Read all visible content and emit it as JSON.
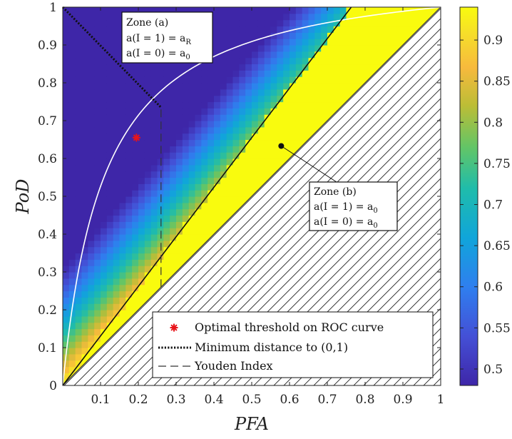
{
  "chart_data": {
    "type": "heatmap",
    "xlabel": "PFA",
    "ylabel": "PoD",
    "xlim": [
      0,
      1
    ],
    "ylim": [
      0,
      1
    ],
    "x_ticks": [
      "0.1",
      "0.2",
      "0.3",
      "0.4",
      "0.5",
      "0.6",
      "0.7",
      "0.8",
      "0.9",
      "1"
    ],
    "y_ticks": [
      "0",
      "0.1",
      "0.2",
      "0.3",
      "0.4",
      "0.5",
      "0.6",
      "0.7",
      "0.8",
      "0.9",
      "1"
    ],
    "colorbar": {
      "min": 0.48,
      "max": 0.94,
      "ticks": [
        "0.5",
        "0.55",
        "0.6",
        "0.65",
        "0.7",
        "0.75",
        "0.8",
        "0.85",
        "0.9"
      ],
      "colormap": "parula"
    },
    "roc_curve_k": 9,
    "zone_boundary": {
      "slope": 1.31,
      "intercept": 0
    },
    "optimal_point": {
      "x": 0.195,
      "y": 0.655
    },
    "min_distance_line": {
      "x": [
        0,
        0.26
      ],
      "y": [
        1,
        0.735
      ]
    },
    "youden_line": {
      "x": [
        0.26,
        0.26
      ],
      "y": [
        0.26,
        0.735
      ]
    },
    "zone_b_marker": {
      "x": 0.578,
      "y": 0.633
    },
    "annotations": {
      "zone_a": [
        "Zone (a)",
        "a(I = 1) = a",
        "R",
        "a(I = 0) = a",
        "0"
      ],
      "zone_b": [
        "Zone (b)",
        "a(I = 1) = a",
        "0",
        "a(I = 0) = a",
        "0"
      ]
    },
    "legend": {
      "placement": "bottom-right",
      "entries": [
        "Optimal threshold on ROC curve",
        "Minimum distance to (0,1)",
        "Youden Index"
      ]
    }
  }
}
